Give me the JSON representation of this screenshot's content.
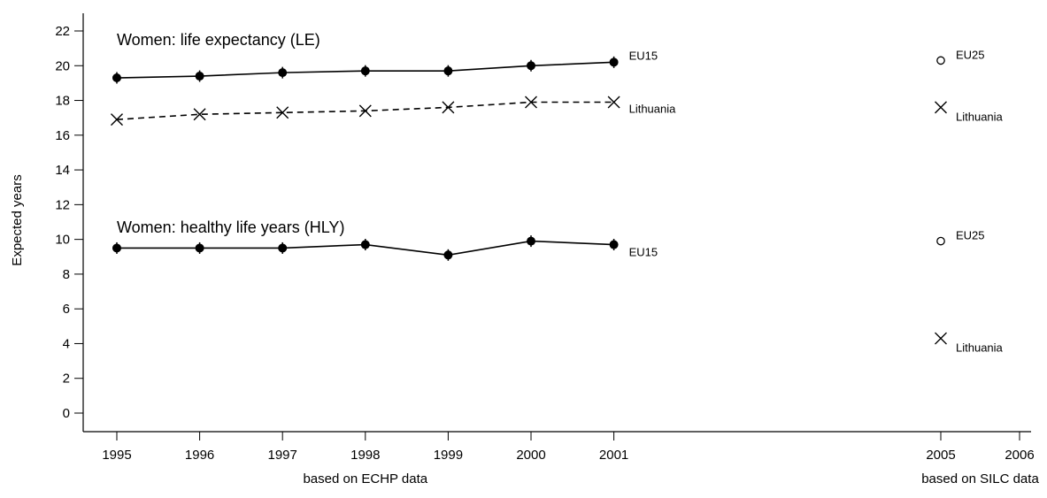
{
  "chart_data": {
    "type": "line",
    "ylabel": "Expected years",
    "ylim": [
      0,
      22
    ],
    "yticks": [
      0,
      2,
      4,
      6,
      8,
      10,
      12,
      14,
      16,
      18,
      20,
      22
    ],
    "xticks": [
      1995,
      1996,
      1997,
      1998,
      1999,
      2000,
      2001,
      2005,
      2006
    ],
    "xlim": [
      1995,
      2006
    ],
    "sublabels": [
      {
        "text": "based on ECHP data",
        "x": 1998
      },
      {
        "text": "based on SILC data",
        "x": 2005.5
      }
    ],
    "annotations": [
      {
        "text": "Women: life expectancy (LE)",
        "x": 1995,
        "y": 21.5
      },
      {
        "text": "Women: healthy life years (HLY)",
        "x": 1995,
        "y": 10.7
      }
    ],
    "series": [
      {
        "name": "EU15",
        "group": "LE",
        "style": "solid",
        "marker": "filled-circle",
        "x": [
          1995,
          1996,
          1997,
          1998,
          1999,
          2000,
          2001
        ],
        "y": [
          19.3,
          19.4,
          19.6,
          19.7,
          19.7,
          20.0,
          20.2
        ]
      },
      {
        "name": "Lithuania",
        "group": "LE",
        "style": "dashed",
        "marker": "x",
        "x": [
          1995,
          1996,
          1997,
          1998,
          1999,
          2000,
          2001
        ],
        "y": [
          16.9,
          17.2,
          17.3,
          17.4,
          17.6,
          17.9,
          17.9
        ]
      },
      {
        "name": "EU25",
        "group": "LE",
        "style": "none",
        "marker": "open-circle",
        "x": [
          2005
        ],
        "y": [
          20.3
        ]
      },
      {
        "name": "Lithuania",
        "group": "LE",
        "style": "none",
        "marker": "x",
        "x": [
          2005
        ],
        "y": [
          17.6
        ]
      },
      {
        "name": "EU15",
        "group": "HLY",
        "style": "solid",
        "marker": "filled-circle",
        "x": [
          1995,
          1996,
          1997,
          1998,
          1999,
          2000,
          2001
        ],
        "y": [
          9.5,
          9.5,
          9.5,
          9.7,
          9.1,
          9.9,
          9.7
        ]
      },
      {
        "name": "EU25",
        "group": "HLY",
        "style": "none",
        "marker": "open-circle",
        "x": [
          2005
        ],
        "y": [
          9.9
        ]
      },
      {
        "name": "Lithuania",
        "group": "HLY",
        "style": "none",
        "marker": "x",
        "x": [
          2005
        ],
        "y": [
          4.3
        ]
      }
    ]
  }
}
